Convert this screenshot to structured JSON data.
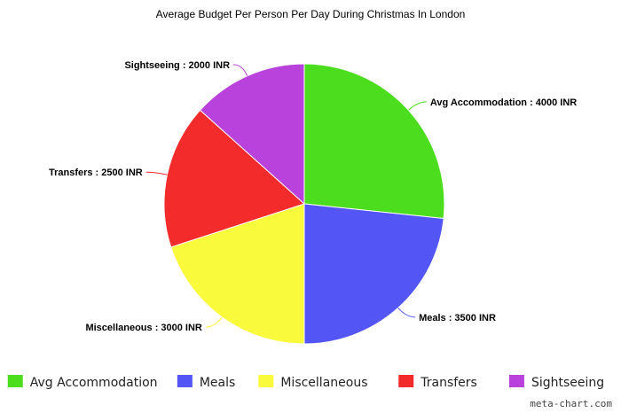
{
  "chart_data": {
    "type": "pie",
    "title": "Average Budget Per Person Per Day During Christmas In London",
    "unit": "INR",
    "slices": [
      {
        "name": "Avg Accommodation",
        "value": 4000,
        "label": "Avg Accommodation : 4000 INR",
        "color": "#4cdd1f"
      },
      {
        "name": "Meals",
        "value": 3500,
        "label": "Meals : 3500 INR",
        "color": "#5356f5"
      },
      {
        "name": "Miscellaneous",
        "value": 3000,
        "label": "Miscellaneous : 3000 INR",
        "color": "#fafa3c"
      },
      {
        "name": "Transfers",
        "value": 2500,
        "label": "Transfers : 2500 INR",
        "color": "#f42b2b"
      },
      {
        "name": "Sightseeing",
        "value": 2000,
        "label": "Sightseeing : 2000 INR",
        "color": "#b942dc"
      }
    ],
    "legend_position": "bottom"
  },
  "watermark": "meta-chart.com"
}
